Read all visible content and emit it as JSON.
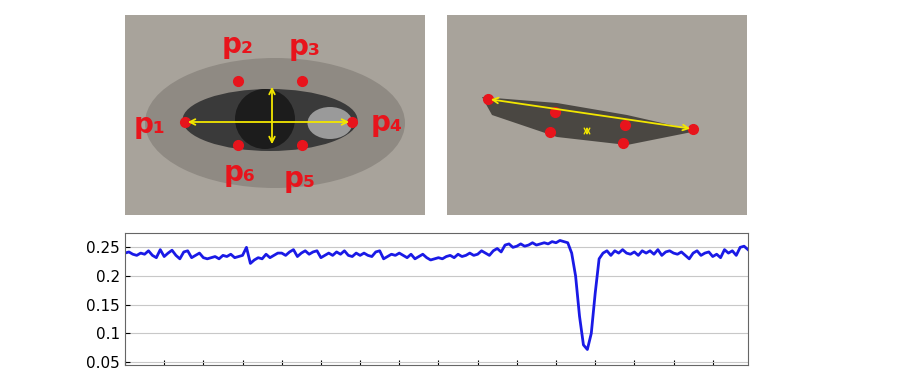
{
  "chart_data": {
    "type": "line",
    "x": [
      0,
      1,
      2,
      3,
      4,
      5,
      6,
      7,
      8,
      9,
      10,
      11,
      12,
      13,
      14,
      15,
      16,
      17,
      18,
      19,
      20,
      21,
      22,
      23,
      24,
      25,
      26,
      27,
      28,
      29,
      30,
      31,
      32,
      33,
      34,
      35,
      36,
      37,
      38,
      39,
      40,
      41,
      42,
      43,
      44,
      45,
      46,
      47,
      48,
      49,
      50,
      51,
      52,
      53,
      54,
      55,
      56,
      57,
      58,
      59,
      60,
      61,
      62,
      63,
      64,
      65,
      66,
      67,
      68,
      69,
      70,
      71,
      72,
      73,
      74,
      75,
      76,
      77,
      78,
      79,
      80,
      81,
      82,
      83,
      84,
      85,
      86,
      87,
      88,
      89,
      90,
      91,
      92,
      93,
      94,
      95,
      96,
      97,
      98,
      99,
      100,
      101,
      102,
      103,
      104,
      105,
      106,
      107,
      108,
      109,
      110,
      111,
      112,
      113,
      114,
      115,
      116,
      117,
      118,
      119,
      120,
      121,
      122,
      123,
      124,
      125,
      126,
      127,
      128,
      129,
      130,
      131,
      132,
      133,
      134,
      135,
      136,
      137,
      138,
      139,
      140,
      141,
      142,
      143,
      144,
      145,
      146,
      147,
      148,
      149,
      150,
      151,
      152,
      153,
      154,
      155,
      156,
      157,
      158,
      159
    ],
    "values": [
      0.24,
      0.242,
      0.238,
      0.236,
      0.24,
      0.238,
      0.244,
      0.236,
      0.232,
      0.246,
      0.234,
      0.24,
      0.245,
      0.236,
      0.23,
      0.242,
      0.244,
      0.232,
      0.236,
      0.24,
      0.232,
      0.23,
      0.232,
      0.234,
      0.23,
      0.236,
      0.234,
      0.238,
      0.232,
      0.234,
      0.236,
      0.25,
      0.222,
      0.228,
      0.232,
      0.23,
      0.238,
      0.232,
      0.236,
      0.24,
      0.24,
      0.236,
      0.242,
      0.246,
      0.234,
      0.24,
      0.244,
      0.238,
      0.242,
      0.244,
      0.232,
      0.236,
      0.24,
      0.236,
      0.242,
      0.238,
      0.244,
      0.236,
      0.234,
      0.24,
      0.236,
      0.24,
      0.236,
      0.234,
      0.242,
      0.244,
      0.23,
      0.234,
      0.238,
      0.236,
      0.24,
      0.236,
      0.232,
      0.238,
      0.23,
      0.234,
      0.238,
      0.232,
      0.228,
      0.23,
      0.232,
      0.23,
      0.234,
      0.236,
      0.232,
      0.238,
      0.234,
      0.236,
      0.24,
      0.236,
      0.238,
      0.244,
      0.24,
      0.236,
      0.244,
      0.248,
      0.242,
      0.254,
      0.256,
      0.25,
      0.252,
      0.256,
      0.252,
      0.254,
      0.258,
      0.254,
      0.256,
      0.258,
      0.256,
      0.26,
      0.258,
      0.262,
      0.26,
      0.258,
      0.24,
      0.2,
      0.13,
      0.08,
      0.072,
      0.1,
      0.17,
      0.23,
      0.24,
      0.244,
      0.236,
      0.244,
      0.24,
      0.246,
      0.24,
      0.238,
      0.242,
      0.236,
      0.244,
      0.24,
      0.244,
      0.238,
      0.246,
      0.236,
      0.242,
      0.244,
      0.24,
      0.238,
      0.242,
      0.236,
      0.23,
      0.24,
      0.244,
      0.236,
      0.24,
      0.242,
      0.234,
      0.238,
      0.232,
      0.246,
      0.24,
      0.244,
      0.236,
      0.25,
      0.252,
      0.246
    ],
    "color": "#1a1ae6",
    "xlim": [
      0,
      159
    ],
    "xticks": [
      0,
      10,
      20,
      30,
      40,
      50,
      60,
      70,
      80,
      90,
      100,
      110,
      120,
      130,
      140,
      150
    ],
    "ylim": [
      0.045,
      0.275
    ],
    "yticks": [
      0.05,
      0.1,
      0.15,
      0.2,
      0.25
    ],
    "grid": true,
    "tick_labels": "y"
  },
  "eye_diagram": {
    "landmark_labels": [
      "p₁",
      "p₂",
      "p₃",
      "p₄",
      "p₅",
      "p₆"
    ]
  }
}
